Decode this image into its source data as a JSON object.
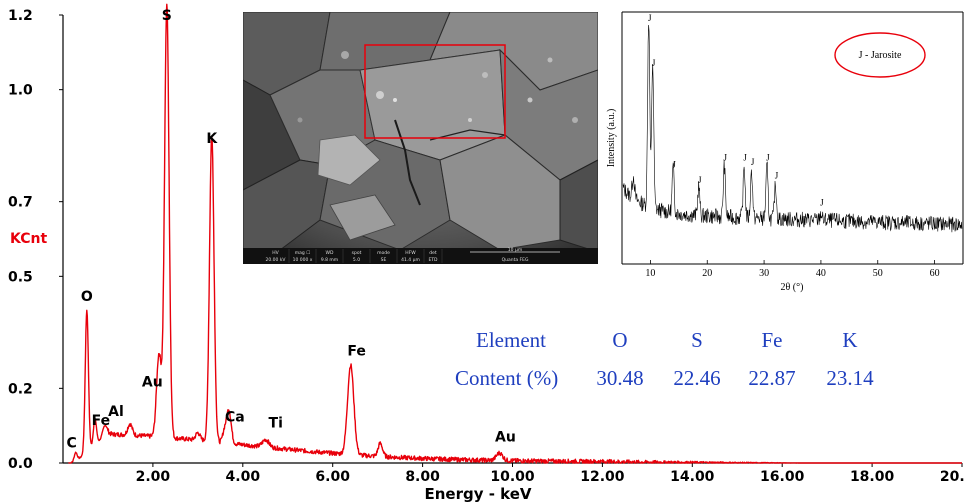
{
  "eds": {
    "type": "line",
    "ylabel": "KCnt",
    "xlabel": "Energy - keV",
    "yticks": [
      "0.0",
      "0.2",
      "0.5",
      "0.7",
      "1.0",
      "1.2"
    ],
    "ytick_values": [
      0.0,
      0.2,
      0.5,
      0.7,
      1.0,
      1.2
    ],
    "xticks": [
      "2.00",
      "4.00",
      "6.00",
      "8.00",
      "10.00",
      "12.00",
      "14.00",
      "16.00",
      "18.00",
      "20.00"
    ],
    "xtick_values": [
      2,
      4,
      6,
      8,
      10,
      12,
      14,
      16,
      18,
      20
    ],
    "xlim": [
      0,
      20
    ],
    "ylim": [
      0,
      1.2
    ],
    "line_color": "#e8000b",
    "peaks": [
      {
        "label": "C",
        "x": 0.28,
        "y": 0.025
      },
      {
        "label": "O",
        "x": 0.53,
        "y": 0.38
      },
      {
        "label": "Fe",
        "x": 0.71,
        "y": 0.07
      },
      {
        "label": "Al",
        "x": 1.49,
        "y": 0.03
      },
      {
        "label": "Au",
        "x": 2.12,
        "y": 0.14
      },
      {
        "label": "S",
        "x": 2.31,
        "y": 1.16
      },
      {
        "label": "K",
        "x": 3.31,
        "y": 0.82
      },
      {
        "label": "Ca",
        "x": 3.69,
        "y": 0.09
      },
      {
        "label": "Ti",
        "x": 4.51,
        "y": 0.02
      },
      {
        "label": "Fe",
        "x": 6.4,
        "y": 0.24
      },
      {
        "label": "Au",
        "x": 9.71,
        "y": 0.02
      }
    ]
  },
  "composition": {
    "row1_label": "Element",
    "row2_label": "Content (%)",
    "elements": [
      "O",
      "S",
      "Fe",
      "K"
    ],
    "values": [
      "30.48",
      "22.46",
      "22.87",
      "23.14"
    ],
    "text_color": "#1f3fbf"
  },
  "sem": {
    "info_bar": [
      {
        "head": "HV",
        "val": "20.00 kV"
      },
      {
        "head": "mag ☐",
        "val": "10 000 x"
      },
      {
        "head": "WD",
        "val": "9.8 mm"
      },
      {
        "head": "spot",
        "val": "5.0"
      },
      {
        "head": "mode",
        "val": "SE"
      },
      {
        "head": "HFW",
        "val": "41.4 μm"
      },
      {
        "head": "det",
        "val": "ETD"
      }
    ],
    "scale_label": "10 μm",
    "instrument": "Quanta FEG"
  },
  "xrd": {
    "type": "line",
    "ylabel": "Intensity (a.u.)",
    "xlabel": "2θ (°)",
    "xticks": [
      "10",
      "20",
      "30",
      "40",
      "50",
      "60"
    ],
    "xtick_values": [
      10,
      20,
      30,
      40,
      50,
      60
    ],
    "xlim": [
      5,
      65
    ],
    "legend": "J - Jarosite",
    "legend_color": "#e8000b",
    "peak_letter": "J",
    "peaks": [
      {
        "x": 9.7,
        "y": 1.0
      },
      {
        "x": 10.4,
        "y": 0.8
      },
      {
        "x": 14.0,
        "y": 0.35
      },
      {
        "x": 18.5,
        "y": 0.28
      },
      {
        "x": 23.0,
        "y": 0.38
      },
      {
        "x": 26.5,
        "y": 0.38
      },
      {
        "x": 27.8,
        "y": 0.36
      },
      {
        "x": 30.5,
        "y": 0.38
      },
      {
        "x": 32.0,
        "y": 0.3
      },
      {
        "x": 40.0,
        "y": 0.18
      }
    ]
  }
}
